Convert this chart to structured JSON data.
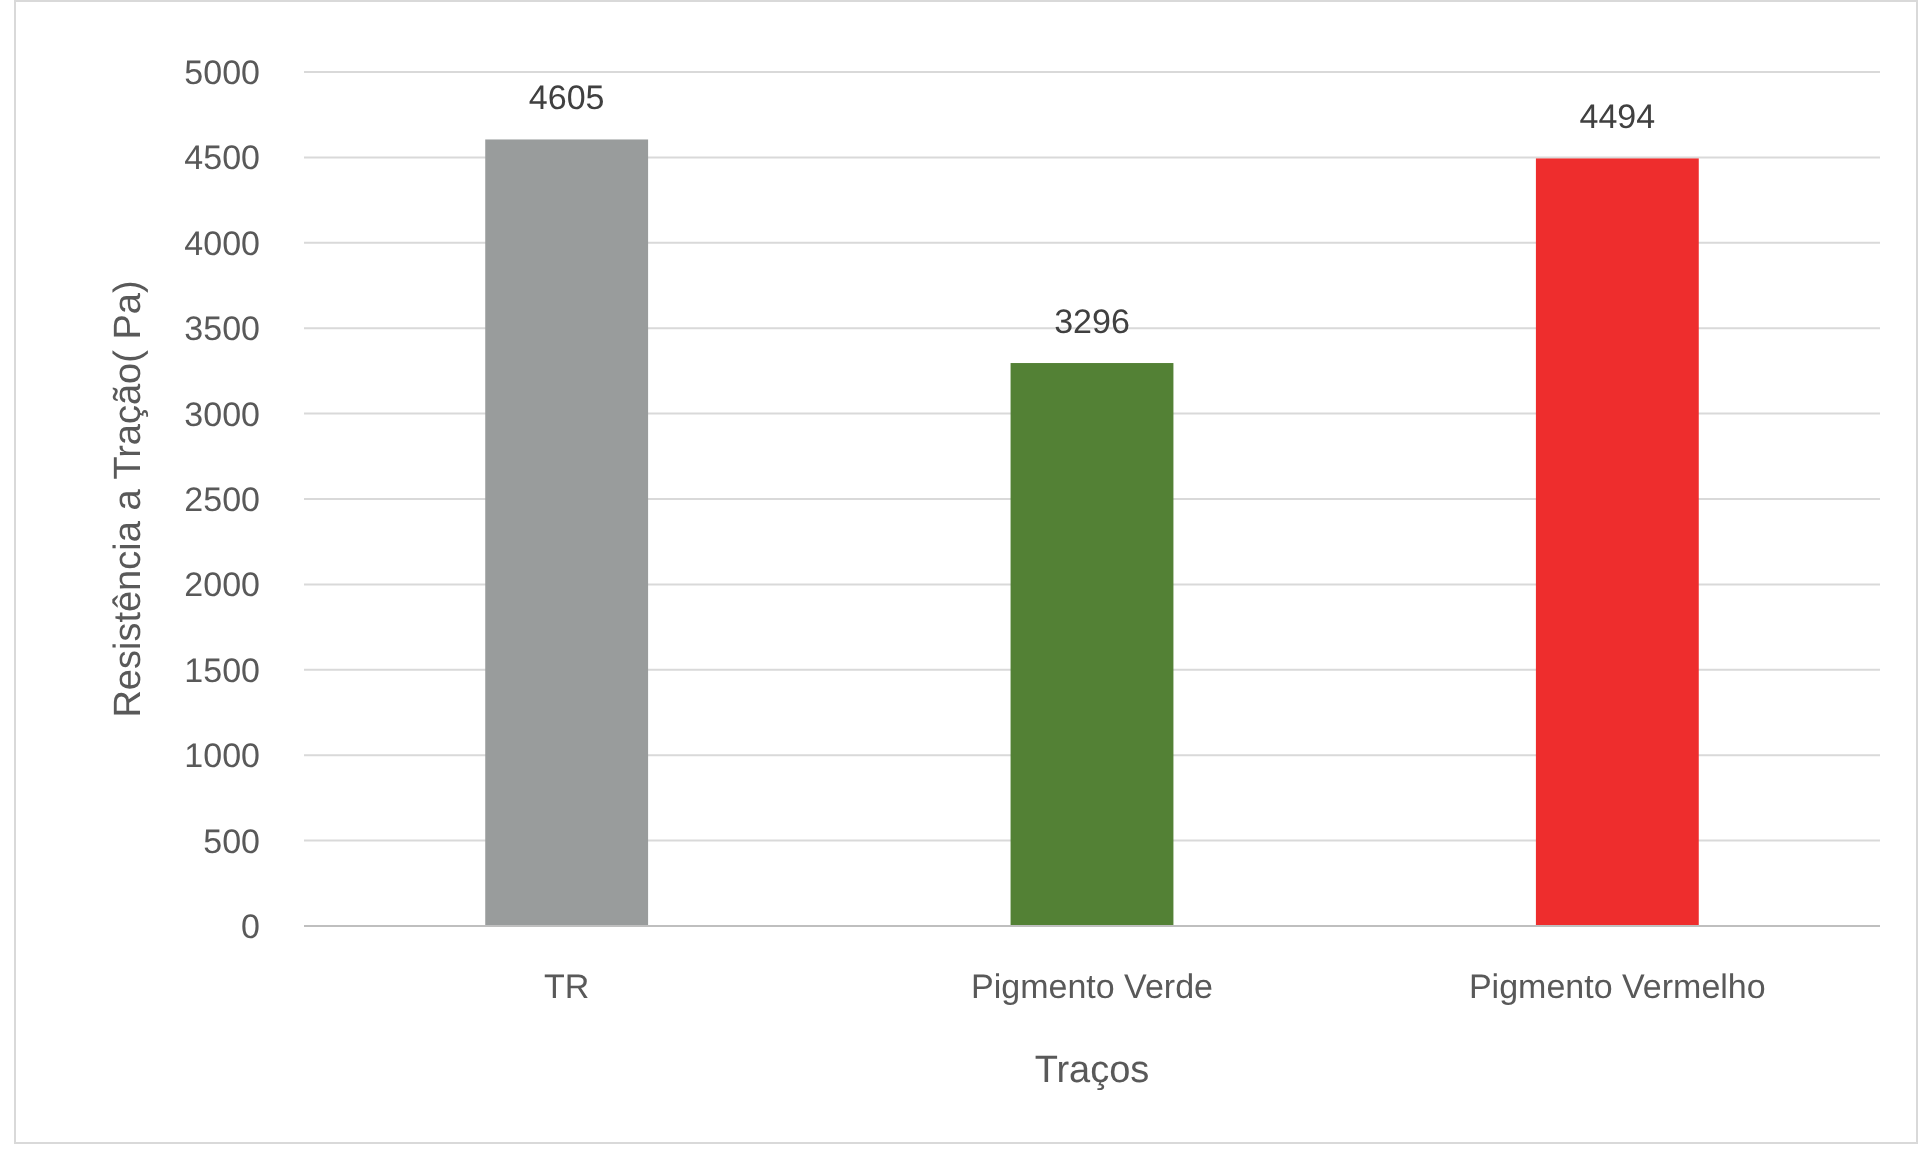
{
  "chart_data": {
    "type": "bar",
    "xlabel": "Traços",
    "ylabel": "Resistência a Tração( Pa)",
    "categories": [
      "TR",
      "Pigmento Verde",
      "Pigmento Vermelho"
    ],
    "values": [
      4605,
      3296,
      4494
    ],
    "colors": [
      "#999c9c",
      "#538135",
      "#ee2d2d"
    ],
    "ylim": [
      0,
      5000
    ],
    "yticks": [
      0,
      500,
      1000,
      1500,
      2000,
      2500,
      3000,
      3500,
      4000,
      4500,
      5000
    ],
    "grid": "y",
    "data_labels": true
  }
}
